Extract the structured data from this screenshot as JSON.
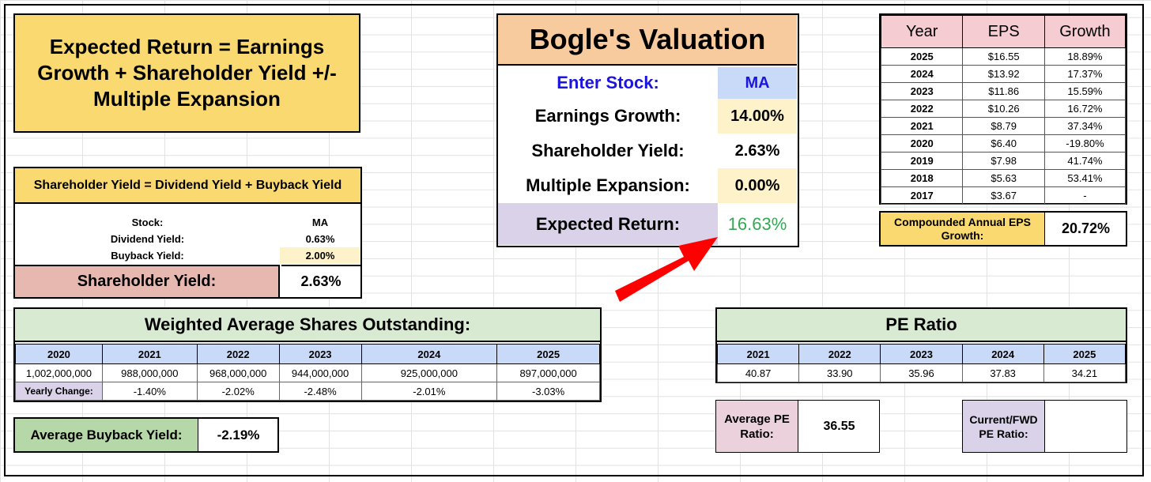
{
  "formula": "Expected Return = Earnings Growth + Shareholder Yield +/- Multiple Expansion",
  "bogle": {
    "title": "Bogle's Valuation",
    "rows": [
      {
        "label": "Enter Stock:",
        "value": "MA"
      },
      {
        "label": "Earnings Growth:",
        "value": "14.00%"
      },
      {
        "label": "Shareholder Yield:",
        "value": "2.63%"
      },
      {
        "label": "Multiple Expansion:",
        "value": "0.00%"
      },
      {
        "label": "Expected Return:",
        "value": "16.63%"
      }
    ],
    "colors": {
      "enter_stock": "#1c14e0",
      "expected_return": "#34a853",
      "arrow": "#ff0000"
    }
  },
  "eps": {
    "headers": [
      "Year",
      "EPS",
      "Growth"
    ],
    "rows": [
      [
        "2025",
        "$16.55",
        "18.89%"
      ],
      [
        "2024",
        "$13.92",
        "17.37%"
      ],
      [
        "2023",
        "$11.86",
        "15.59%"
      ],
      [
        "2022",
        "$10.26",
        "16.72%"
      ],
      [
        "2021",
        "$8.79",
        "37.34%"
      ],
      [
        "2020",
        "$6.40",
        "-19.80%"
      ],
      [
        "2019",
        "$7.98",
        "41.74%"
      ],
      [
        "2018",
        "$5.63",
        "53.41%"
      ],
      [
        "2017",
        "$3.67",
        "-"
      ]
    ],
    "caeg_label": "Compounded Annual EPS Growth:",
    "caeg_value": "20.72%"
  },
  "shareholder_yield": {
    "header": "Shareholder Yield = Dividend Yield + Buyback Yield",
    "rows": [
      {
        "label": "Stock:",
        "value": "MA"
      },
      {
        "label": "Dividend Yield:",
        "value": "0.63%"
      },
      {
        "label": "Buyback Yield:",
        "value": "2.00%"
      }
    ],
    "total_label": "Shareholder Yield:",
    "total_value": "2.63%"
  },
  "waso": {
    "title": "Weighted Average Shares Outstanding:",
    "years": [
      "2020",
      "2021",
      "2022",
      "2023",
      "2024",
      "2025"
    ],
    "shares": [
      "1,002,000,000",
      "988,000,000",
      "968,000,000",
      "944,000,000",
      "925,000,000",
      "897,000,000"
    ],
    "change_label": "Yearly Change:",
    "changes": [
      "-1.40%",
      "-2.02%",
      "-2.48%",
      "-2.01%",
      "-3.03%"
    ],
    "avg_label": "Average Buyback Yield:",
    "avg_value": "-2.19%"
  },
  "pe": {
    "title": "PE Ratio",
    "years": [
      "2021",
      "2022",
      "2023",
      "2024",
      "2025"
    ],
    "values": [
      "40.87",
      "33.90",
      "35.96",
      "37.83",
      "34.21"
    ],
    "avg_label": "Average PE Ratio:",
    "avg_value": "36.55",
    "current_label": "Current/FWD PE Ratio:",
    "current_value": ""
  }
}
